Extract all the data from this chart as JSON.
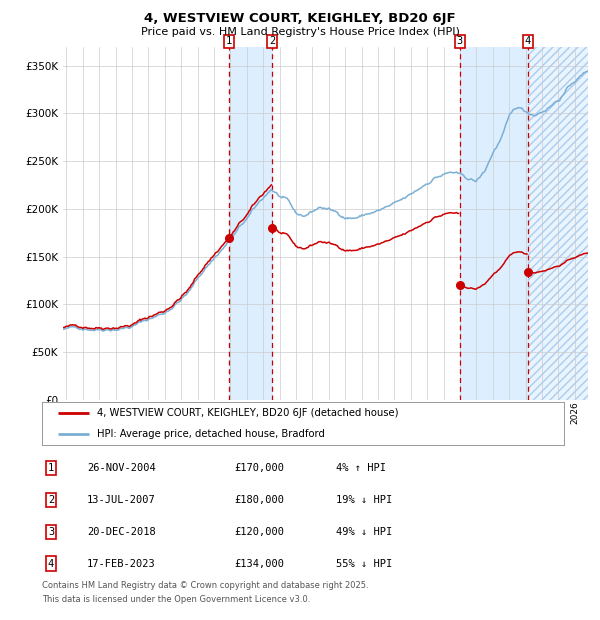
{
  "title": "4, WESTVIEW COURT, KEIGHLEY, BD20 6JF",
  "subtitle": "Price paid vs. HM Land Registry's House Price Index (HPI)",
  "legend_line1": "4, WESTVIEW COURT, KEIGHLEY, BD20 6JF (detached house)",
  "legend_line2": "HPI: Average price, detached house, Bradford",
  "footer1": "Contains HM Land Registry data © Crown copyright and database right 2025.",
  "footer2": "This data is licensed under the Open Government Licence v3.0.",
  "transactions": [
    {
      "num": 1,
      "date": "26-NOV-2004",
      "price": 170000,
      "pct": "4%",
      "dir": "↑",
      "year": 2004.9
    },
    {
      "num": 2,
      "date": "13-JUL-2007",
      "price": 180000,
      "pct": "19%",
      "dir": "↓",
      "year": 2007.54
    },
    {
      "num": 3,
      "date": "20-DEC-2018",
      "price": 120000,
      "pct": "49%",
      "dir": "↓",
      "year": 2018.97
    },
    {
      "num": 4,
      "date": "17-FEB-2023",
      "price": 134000,
      "pct": "55%",
      "dir": "↓",
      "year": 2023.13
    }
  ],
  "table_rows": [
    [
      1,
      "26-NOV-2004",
      "£170,000",
      "4% ↑ HPI"
    ],
    [
      2,
      "13-JUL-2007",
      "£180,000",
      "19% ↓ HPI"
    ],
    [
      3,
      "20-DEC-2018",
      "£120,000",
      "49% ↓ HPI"
    ],
    [
      4,
      "17-FEB-2023",
      "£134,000",
      "55% ↓ HPI"
    ]
  ],
  "hpi_color": "#7bafd4",
  "price_color": "#cc0000",
  "shade_color": "#ddeeff",
  "ylim": [
    0,
    370000
  ],
  "yticks": [
    0,
    50000,
    100000,
    150000,
    200000,
    250000,
    300000,
    350000
  ],
  "xlim_start": 1994.8,
  "xlim_end": 2026.8,
  "background_color": "#ffffff",
  "grid_color": "#cccccc"
}
